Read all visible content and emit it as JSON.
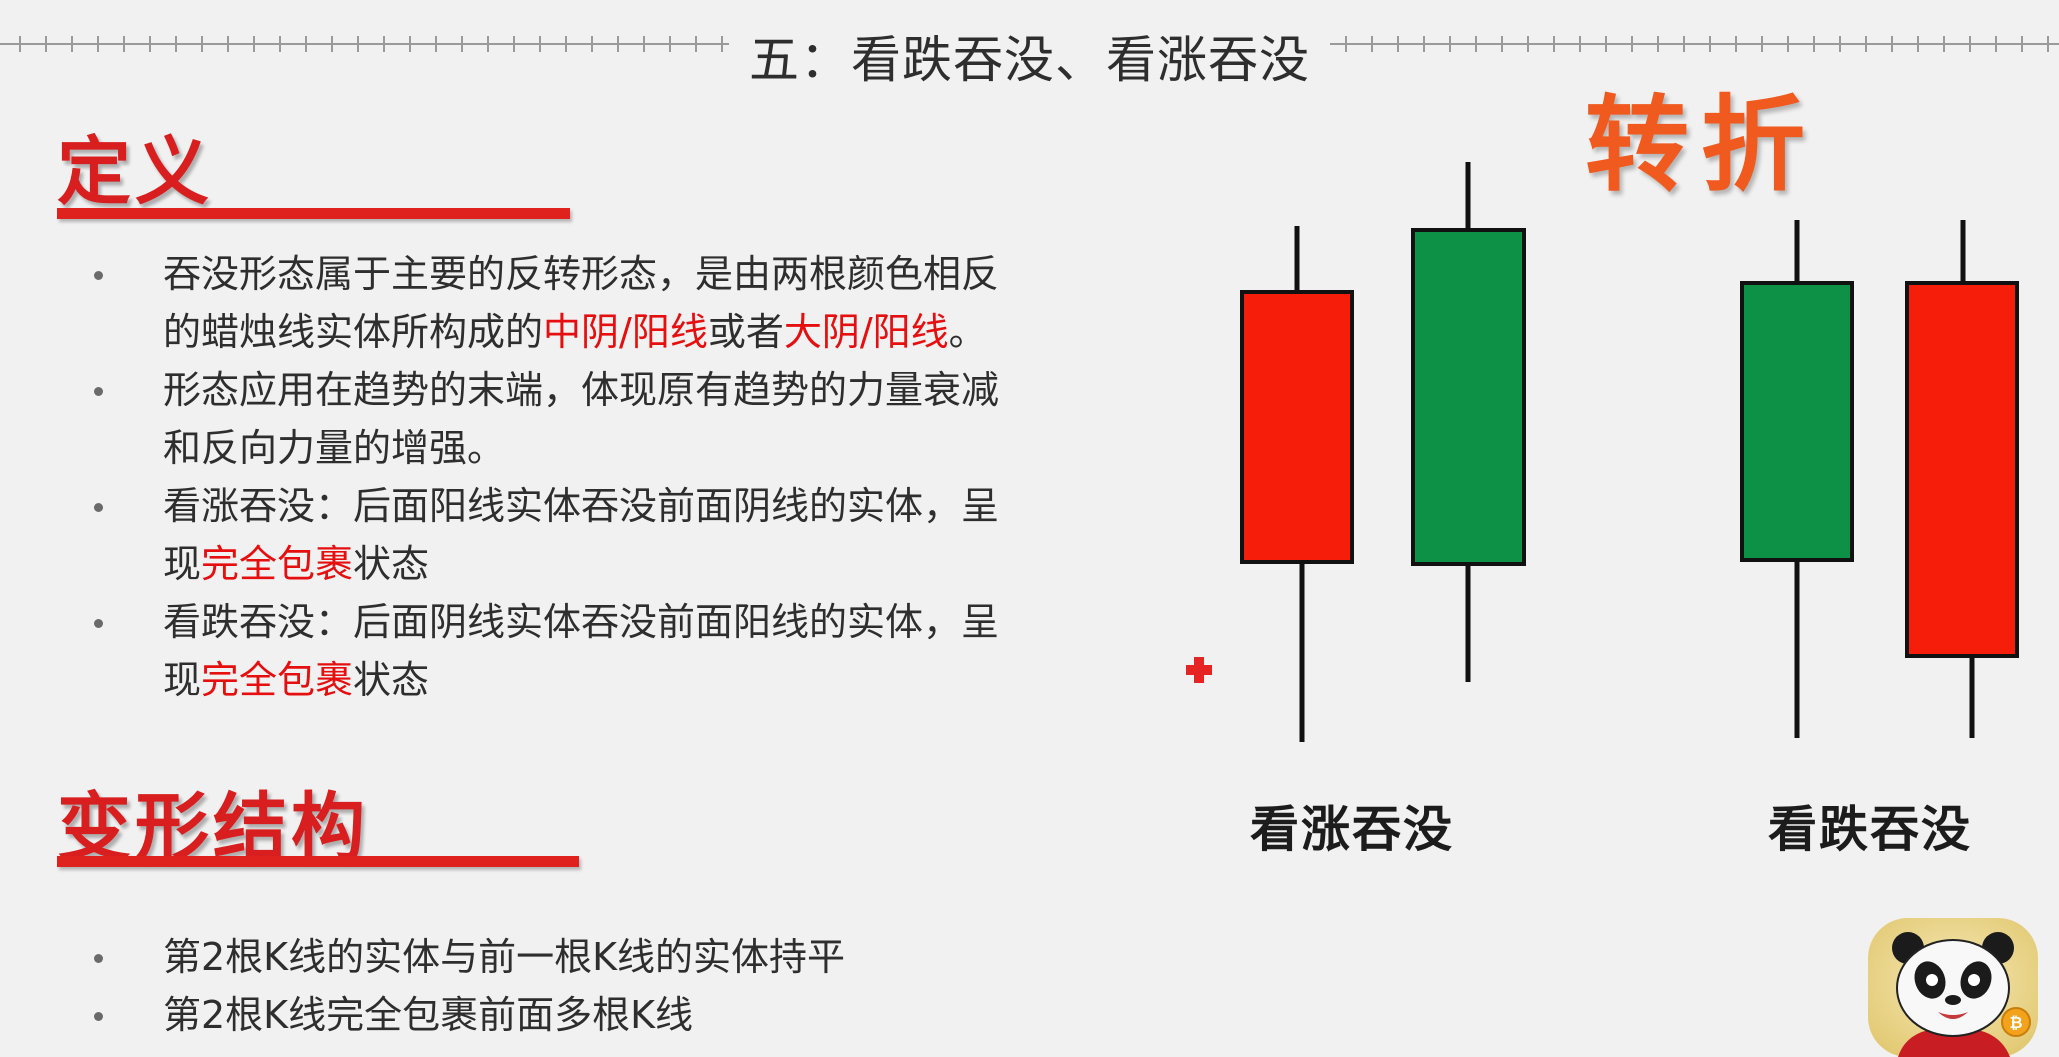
{
  "title": "五：看跌吞没、看涨吞没",
  "definition": {
    "heading": "定义",
    "bullets": [
      {
        "lines": [
          [
            {
              "t": "吞没形态属于主要的反转形态，是由两根颜色相反",
              "hl": false
            }
          ],
          [
            {
              "t": "的蜡烛线实体所构成的",
              "hl": false
            },
            {
              "t": "中阴/阳线",
              "hl": true
            },
            {
              "t": "或者",
              "hl": false
            },
            {
              "t": "大阴/阳线",
              "hl": true
            },
            {
              "t": "。",
              "hl": false
            }
          ]
        ]
      },
      {
        "lines": [
          [
            {
              "t": "形态应用在趋势的末端，体现原有趋势的力量衰减",
              "hl": false
            }
          ],
          [
            {
              "t": "和反向力量的增强。",
              "hl": false
            }
          ]
        ]
      },
      {
        "lines": [
          [
            {
              "t": "看涨吞没：后面阳线实体吞没前面阴线的实体，呈",
              "hl": false
            }
          ],
          [
            {
              "t": "现",
              "hl": false
            },
            {
              "t": "完全包裹",
              "hl": true
            },
            {
              "t": "状态",
              "hl": false
            }
          ]
        ]
      },
      {
        "lines": [
          [
            {
              "t": "看跌吞没：后面阴线实体吞没前面阳线的实体，呈",
              "hl": false
            }
          ],
          [
            {
              "t": "现",
              "hl": false
            },
            {
              "t": "完全包裹",
              "hl": true
            },
            {
              "t": "状态",
              "hl": false
            }
          ]
        ]
      }
    ]
  },
  "variant": {
    "heading": "变形结构",
    "bullets": [
      {
        "lines": [
          [
            {
              "t": "第2根K线的实体与前一根K线的实体持平",
              "hl": false
            }
          ]
        ]
      },
      {
        "lines": [
          [
            {
              "t": "第2根K线完全包裹前面多根K线",
              "hl": false
            }
          ]
        ]
      }
    ]
  },
  "figure": {
    "turn_label": "转折",
    "bullish_caption": "看涨吞没",
    "bearish_caption": "看跌吞没"
  },
  "colors": {
    "bear_candle": "#f61d0b",
    "bull_candle": "#0c9146",
    "accent_red": "#e60f0f",
    "turn_orange": "#f05a1e"
  }
}
